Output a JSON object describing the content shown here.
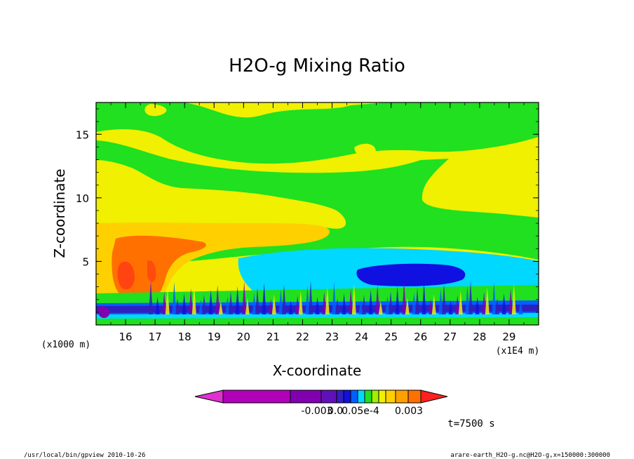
{
  "chart_data": {
    "type": "heatmap",
    "title": "H2O-g Mixing Ratio",
    "xlabel": "X-coordinate",
    "ylabel": "Z-coordinate",
    "x_unit_label": "(x1E4 m)",
    "y_unit_label": "(x1000 m)",
    "xlim": [
      15.0,
      30.0
    ],
    "ylim": [
      0.0,
      17.5
    ],
    "x_ticks": [
      16,
      17,
      18,
      19,
      20,
      21,
      22,
      23,
      24,
      25,
      26,
      27,
      28,
      29
    ],
    "y_ticks": [
      5,
      10,
      15
    ],
    "colorbar": {
      "colors": [
        "#e030d0",
        "#b000b8",
        "#8000b0",
        "#6010b8",
        "#3020c0",
        "#1010e0",
        "#0060ff",
        "#00d8ff",
        "#20e020",
        "#a0f000",
        "#f0f000",
        "#ffd000",
        "#ffa000",
        "#ff7000",
        "#ff2020"
      ],
      "labels": [
        "-0.003",
        "0.0",
        "0.05e-4",
        "0.003"
      ],
      "label_note": "labels overlap in original rendering: -0.0030.05e-4 0.003"
    },
    "time_label": "t=7500 s",
    "footer_left": "/usr/local/bin/gpview  2010-10-26",
    "footer_right": "arare-earth_H2O-g.nc@H2O-g,x=150000:300000"
  }
}
